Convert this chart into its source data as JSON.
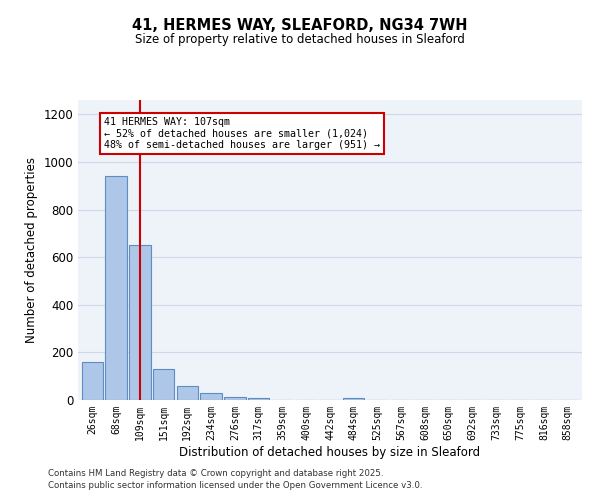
{
  "title1": "41, HERMES WAY, SLEAFORD, NG34 7WH",
  "title2": "Size of property relative to detached houses in Sleaford",
  "xlabel": "Distribution of detached houses by size in Sleaford",
  "ylabel": "Number of detached properties",
  "bar_labels": [
    "26sqm",
    "68sqm",
    "109sqm",
    "151sqm",
    "192sqm",
    "234sqm",
    "276sqm",
    "317sqm",
    "359sqm",
    "400sqm",
    "442sqm",
    "484sqm",
    "525sqm",
    "567sqm",
    "608sqm",
    "650sqm",
    "692sqm",
    "733sqm",
    "775sqm",
    "816sqm",
    "858sqm"
  ],
  "bar_values": [
    160,
    940,
    650,
    130,
    57,
    30,
    13,
    8,
    0,
    0,
    0,
    10,
    0,
    0,
    0,
    0,
    0,
    0,
    0,
    0,
    0
  ],
  "bar_color": "#aec6e8",
  "bar_edge_color": "#5a8fc0",
  "vline_x": 2,
  "vline_color": "#cc0000",
  "ann_line1": "41 HERMES WAY: 107sqm",
  "ann_line2": "← 52% of detached houses are smaller (1,024)",
  "ann_line3": "48% of semi-detached houses are larger (951) →",
  "annotation_box_color": "#ffffff",
  "annotation_border_color": "#cc0000",
  "ylim": [
    0,
    1260
  ],
  "yticks": [
    0,
    200,
    400,
    600,
    800,
    1000,
    1200
  ],
  "grid_color": "#d0d8e8",
  "background_color": "#eef2f9",
  "footer1": "Contains HM Land Registry data © Crown copyright and database right 2025.",
  "footer2": "Contains public sector information licensed under the Open Government Licence v3.0."
}
